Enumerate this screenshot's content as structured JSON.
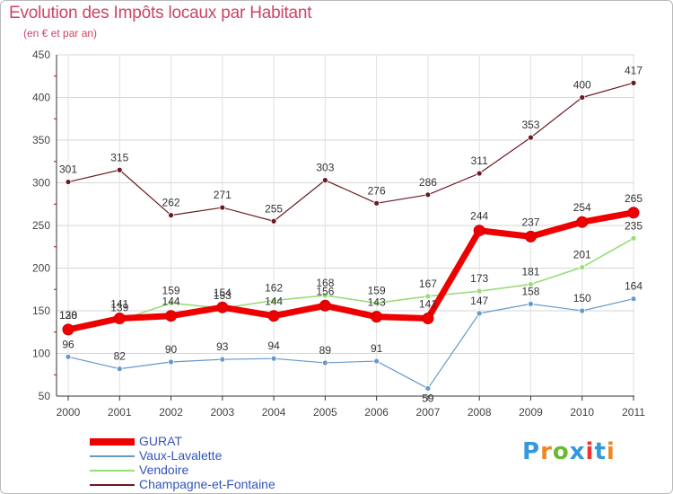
{
  "chart_data": {
    "type": "line",
    "title": "Evolution des Impôts locaux par Habitant",
    "subtitle": "(en € et par an)",
    "xlabel": "",
    "ylabel": "",
    "x": [
      "2000",
      "2001",
      "2002",
      "2003",
      "2004",
      "2005",
      "2006",
      "2007",
      "2008",
      "2009",
      "2010",
      "2011"
    ],
    "ylim": [
      50,
      450
    ],
    "yticks": [
      50,
      100,
      150,
      200,
      250,
      300,
      350,
      400,
      450
    ],
    "grid": true,
    "legend_position": "bottom-left",
    "series": [
      {
        "name": "Champagne-et-Fontaine",
        "color": "#6b1a22",
        "width": 1.2,
        "values": [
          301,
          315,
          262,
          271,
          255,
          303,
          276,
          286,
          311,
          353,
          400,
          417
        ]
      },
      {
        "name": "Vendoire",
        "color": "#99dd77",
        "width": 1.6,
        "values": [
          130,
          139,
          159,
          153,
          162,
          168,
          159,
          167,
          173,
          181,
          201,
          235
        ]
      },
      {
        "name": "Vaux-Lavalette",
        "color": "#6699cc",
        "width": 1.2,
        "values": [
          96,
          82,
          90,
          93,
          94,
          89,
          91,
          59,
          147,
          158,
          150,
          164
        ]
      },
      {
        "name": "GURAT",
        "color": "#ee0000",
        "width": 7,
        "values": [
          128,
          141,
          144,
          154,
          144,
          156,
          143,
          141,
          244,
          237,
          254,
          265
        ]
      }
    ],
    "legend": [
      "GURAT",
      "Vaux-Lavalette",
      "Vendoire",
      "Champagne-et-Fontaine"
    ]
  },
  "logo": {
    "letters": [
      "P",
      "r",
      "o",
      "x",
      "i",
      "t",
      "i"
    ],
    "colors": [
      "#3399dd",
      "#ee8822",
      "#66bb33",
      "#3399dd",
      "#ee3333",
      "#3399dd",
      "#ee8822"
    ]
  }
}
